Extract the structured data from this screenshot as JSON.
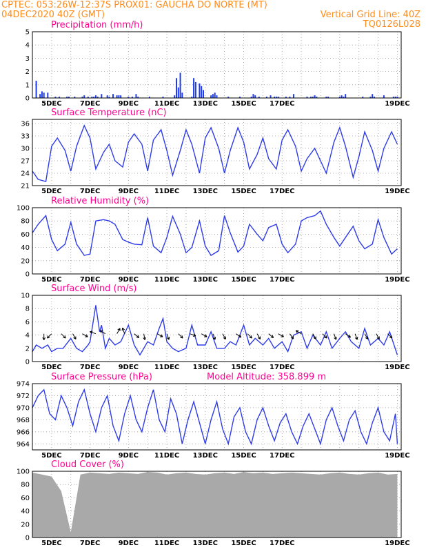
{
  "header": {
    "line1_left": "CPTEC:   053:26W-12:37S   PROX01: GAUCHA DO NORTE (MT)",
    "line2_left": "04DEC2020 40Z (GMT)",
    "line2_right": "Vertical Grid Line: 40Z",
    "line3_right": "TQ0126L028"
  },
  "colors": {
    "header": "#ff8c1a",
    "panel_title": "#ff0090",
    "series": "#2e3be8",
    "bars": "#1f3cf0",
    "cloud": "#a9a9a9",
    "wind_arrow": "#000000"
  },
  "x_axis": {
    "labels": [
      "5DEC",
      "7DEC",
      "9DEC",
      "11DEC",
      "13DEC",
      "15DEC",
      "17DEC",
      "19DEC"
    ]
  },
  "chart_data": [
    {
      "id": "precip",
      "type": "bar",
      "title": "Precipitation (mm/h)",
      "ylim": [
        0,
        5
      ],
      "yticks": [
        "0",
        "1",
        "2",
        "3",
        "4",
        "5"
      ],
      "x": [
        0.2,
        0.4,
        0.5,
        0.6,
        0.8,
        1.2,
        1.4,
        1.8,
        1.9,
        2.2,
        2.6,
        2.7,
        2.9,
        3.1,
        3.2,
        3.3,
        3.4,
        3.6,
        3.9,
        4.0,
        4.2,
        4.4,
        4.5,
        4.6,
        5.0,
        5.2,
        5.4,
        5.5,
        6.1,
        6.8,
        7.4,
        7.5,
        7.6,
        7.7,
        7.8,
        8.3,
        8.4,
        8.5,
        8.7,
        8.8,
        8.9,
        9.3,
        9.4,
        9.5,
        9.6,
        10.2,
        10.8,
        11.4,
        11.5,
        11.6,
        11.8,
        12.2,
        12.4,
        12.6,
        12.7,
        12.8,
        13.2,
        13.4,
        13.6,
        14.3,
        14.5,
        14.6,
        14.7,
        14.8,
        15.3,
        15.4,
        16.0,
        16.1,
        16.2,
        16.3,
        17.2,
        17.6,
        17.7,
        17.8,
        18.3,
        18.8,
        18.9,
        19.0
      ],
      "values": [
        1.3,
        0.3,
        0.5,
        0.4,
        0.4,
        0.1,
        0.1,
        0.1,
        0.1,
        0.1,
        0.1,
        0.2,
        0.1,
        0.1,
        0.1,
        0.2,
        0.1,
        0.3,
        0.2,
        0.1,
        0.3,
        0.2,
        0.2,
        0.2,
        0.1,
        0.1,
        0.3,
        0.1,
        0.1,
        0.1,
        0.2,
        1.5,
        0.8,
        1.9,
        0.4,
        0.1,
        1.5,
        1.2,
        1.1,
        0.9,
        0.6,
        0.2,
        0.3,
        0.4,
        0.2,
        0.1,
        0.1,
        0.1,
        0.3,
        0.2,
        0.1,
        0.1,
        0.2,
        0.1,
        0.1,
        0.1,
        0.1,
        0.1,
        0.3,
        0.1,
        0.1,
        0.1,
        0.2,
        0.1,
        0.1,
        0.1,
        0.1,
        0.2,
        0.1,
        0.3,
        0.1,
        0.1,
        0.3,
        0.1,
        0.2,
        0.1,
        0.1,
        0.1
      ]
    },
    {
      "id": "temp",
      "type": "line",
      "title": "Surface Temperature (nC)",
      "ylim": [
        21,
        37
      ],
      "yticks": [
        "21",
        "24",
        "27",
        "30",
        "33",
        "36"
      ],
      "x": [
        0,
        0.3,
        0.7,
        1.0,
        1.3,
        1.7,
        2.0,
        2.3,
        2.7,
        3.0,
        3.3,
        3.7,
        4.0,
        4.3,
        4.7,
        5.0,
        5.3,
        5.7,
        6.0,
        6.3,
        6.7,
        7.0,
        7.3,
        7.7,
        8.0,
        8.3,
        8.7,
        9.0,
        9.3,
        9.7,
        10.0,
        10.3,
        10.7,
        11.0,
        11.3,
        11.7,
        12.0,
        12.3,
        12.7,
        13.0,
        13.3,
        13.7,
        14.0,
        14.3,
        14.7,
        15.0,
        15.3,
        15.7,
        16.0,
        16.3,
        16.7,
        17.0,
        17.3,
        17.7,
        18.0,
        18.3,
        18.7,
        19.0
      ],
      "values": [
        24.5,
        22.5,
        22.0,
        30.5,
        32.5,
        29.5,
        24.5,
        30.5,
        35.5,
        32.5,
        25.0,
        29.0,
        31.0,
        27.0,
        25.5,
        31.5,
        33.5,
        31.0,
        24.5,
        32.0,
        34.5,
        29.5,
        23.5,
        29.5,
        34.5,
        31.0,
        24.0,
        32.5,
        35.0,
        30.0,
        24.0,
        29.5,
        35.0,
        31.5,
        25.0,
        28.5,
        32.5,
        27.5,
        25.0,
        32.0,
        34.5,
        30.5,
        24.5,
        27.5,
        30.0,
        27.0,
        24.0,
        31.5,
        35.0,
        30.5,
        23.0,
        28.0,
        34.0,
        29.5,
        24.5,
        30.0,
        34.0,
        31.0
      ]
    },
    {
      "id": "rh",
      "type": "line",
      "title": "Relative Humidity (%)",
      "ylim": [
        0,
        100
      ],
      "yticks": [
        "0",
        "20",
        "40",
        "60",
        "80",
        "100"
      ],
      "x": [
        0,
        0.3,
        0.7,
        1.0,
        1.3,
        1.7,
        2.0,
        2.3,
        2.7,
        3.0,
        3.3,
        3.7,
        4.0,
        4.3,
        4.7,
        5.0,
        5.3,
        5.7,
        6.0,
        6.3,
        6.7,
        7.0,
        7.3,
        7.7,
        8.0,
        8.3,
        8.7,
        9.0,
        9.3,
        9.7,
        10.0,
        10.3,
        10.7,
        11.0,
        11.3,
        11.7,
        12.0,
        12.3,
        12.7,
        13.0,
        13.3,
        13.7,
        14.0,
        14.3,
        14.7,
        15.0,
        15.3,
        15.7,
        16.0,
        16.3,
        16.7,
        17.0,
        17.3,
        17.7,
        18.0,
        18.3,
        18.7,
        19.0
      ],
      "values": [
        62,
        75,
        88,
        52,
        35,
        45,
        78,
        45,
        28,
        30,
        80,
        82,
        80,
        75,
        52,
        48,
        45,
        44,
        85,
        42,
        32,
        55,
        87,
        60,
        32,
        40,
        80,
        42,
        28,
        35,
        88,
        62,
        33,
        42,
        75,
        60,
        50,
        70,
        75,
        45,
        32,
        45,
        80,
        85,
        88,
        95,
        75,
        55,
        42,
        55,
        72,
        50,
        38,
        45,
        82,
        55,
        30,
        38
      ]
    },
    {
      "id": "wind",
      "type": "line",
      "title": "Surface Wind (m/s)",
      "ylim": [
        0,
        10
      ],
      "yticks": [
        "0",
        "2",
        "4",
        "6",
        "8",
        "10"
      ],
      "x": [
        0,
        0.2,
        0.5,
        0.8,
        1.0,
        1.3,
        1.6,
        2.0,
        2.3,
        2.6,
        2.9,
        3.0,
        3.3,
        3.5,
        3.6,
        3.8,
        4.0,
        4.3,
        4.6,
        5.0,
        5.3,
        5.6,
        6.0,
        6.3,
        6.6,
        6.8,
        7.0,
        7.3,
        7.6,
        8.0,
        8.3,
        8.6,
        9.0,
        9.3,
        9.6,
        10.0,
        10.3,
        10.6,
        11.0,
        11.3,
        11.6,
        12.0,
        12.3,
        12.6,
        13.0,
        13.3,
        13.6,
        14.0,
        14.3,
        14.6,
        15.0,
        15.3,
        15.6,
        16.0,
        16.3,
        16.6,
        17.0,
        17.3,
        17.6,
        18.0,
        18.3,
        18.6,
        19.0
      ],
      "values": [
        1.5,
        2.5,
        2.0,
        2.5,
        1.5,
        2.0,
        2.0,
        3.5,
        2.0,
        1.5,
        2.5,
        3.0,
        8.5,
        4.5,
        5.5,
        2.0,
        3.5,
        2.5,
        3.0,
        5.5,
        2.5,
        1.0,
        3.0,
        2.5,
        5.0,
        6.5,
        3.0,
        2.0,
        1.5,
        2.0,
        5.5,
        2.5,
        2.5,
        4.5,
        2.0,
        2.0,
        3.0,
        2.5,
        5.5,
        2.5,
        3.5,
        2.5,
        3.5,
        2.0,
        3.0,
        1.5,
        4.0,
        4.5,
        2.0,
        4.0,
        2.5,
        4.5,
        2.0,
        3.5,
        4.5,
        3.0,
        2.0,
        5.0,
        2.5,
        3.5,
        2.5,
        4.5,
        1.0
      ],
      "arrows_x": [
        0.6,
        1.0,
        1.5,
        2.1,
        2.6,
        3.3,
        3.8,
        4.4,
        4.8,
        5.3,
        5.8,
        6.5,
        7.0,
        7.6,
        8.2,
        8.8,
        9.4,
        9.9,
        10.6,
        11.2,
        11.7,
        12.3,
        12.8,
        13.4,
        14.0,
        14.6,
        15.1,
        15.7,
        16.3,
        16.8,
        17.3,
        17.9,
        18.5
      ],
      "arrows_dir_deg": [
        90,
        135,
        45,
        60,
        30,
        200,
        210,
        300,
        250,
        40,
        80,
        30,
        70,
        45,
        20,
        30,
        70,
        60,
        35,
        45,
        60,
        40,
        30,
        55,
        210,
        60,
        45,
        70,
        35,
        70,
        60,
        60,
        45
      ]
    },
    {
      "id": "pressure",
      "type": "line",
      "title": "Surface Pressure (hPa)",
      "ylim": [
        963,
        974
      ],
      "yticks": [
        "964",
        "966",
        "968",
        "970",
        "972",
        "974"
      ],
      "x": [
        0,
        0.3,
        0.6,
        0.9,
        1.2,
        1.5,
        1.8,
        2.1,
        2.4,
        2.7,
        3.0,
        3.3,
        3.6,
        3.9,
        4.2,
        4.5,
        4.8,
        5.1,
        5.4,
        5.7,
        6.0,
        6.3,
        6.6,
        6.9,
        7.2,
        7.5,
        7.8,
        8.1,
        8.4,
        8.7,
        9.0,
        9.3,
        9.6,
        9.9,
        10.2,
        10.5,
        10.8,
        11.1,
        11.4,
        11.7,
        12.0,
        12.3,
        12.6,
        12.9,
        13.2,
        13.5,
        13.8,
        14.1,
        14.4,
        14.7,
        15.0,
        15.3,
        15.6,
        15.9,
        16.2,
        16.5,
        16.8,
        17.1,
        17.4,
        17.7,
        18.0,
        18.3,
        18.6,
        18.9,
        19.0
      ],
      "values": [
        970.0,
        972.0,
        973.0,
        969.0,
        968.0,
        972.0,
        970.0,
        967.0,
        971.0,
        973.0,
        969.0,
        966.0,
        970.0,
        972.0,
        967.0,
        964.5,
        969.0,
        972.0,
        968.0,
        966.0,
        970.0,
        973.0,
        968.0,
        966.0,
        971.5,
        969.0,
        964.0,
        968.0,
        971.0,
        967.5,
        964.0,
        968.0,
        971.0,
        966.5,
        964.0,
        968.5,
        970.0,
        966.0,
        964.0,
        968.0,
        970.0,
        967.0,
        964.5,
        967.5,
        969.0,
        966.0,
        964.0,
        967.0,
        969.0,
        966.5,
        964.0,
        968.0,
        970.0,
        967.0,
        964.5,
        968.0,
        969.5,
        966.0,
        964.0,
        967.5,
        970.0,
        966.0,
        964.5,
        969.0,
        964.0
      ]
    },
    {
      "id": "cloud",
      "type": "bar",
      "title": "Cloud Cover (%)",
      "ylim": [
        0,
        100
      ],
      "yticks": [
        "0",
        "20",
        "40",
        "60",
        "80",
        "100"
      ],
      "x": [
        0,
        0.5,
        1.0,
        1.5,
        2.0,
        2.5,
        3.0,
        3.5,
        4.0,
        4.5,
        5.0,
        5.5,
        6.0,
        6.5,
        7.0,
        7.5,
        8.0,
        8.5,
        9.0,
        9.5,
        10.0,
        10.5,
        11.0,
        11.5,
        12.0,
        12.5,
        13.0,
        13.5,
        14.0,
        14.5,
        15.0,
        15.5,
        16.0,
        16.5,
        17.0,
        17.5,
        18.0,
        18.5,
        19.0
      ],
      "values": [
        98,
        95,
        92,
        70,
        8,
        95,
        98,
        97,
        96,
        98,
        97,
        96,
        99,
        98,
        95,
        97,
        98,
        96,
        95,
        97,
        98,
        96,
        99,
        97,
        98,
        96,
        97,
        98,
        97,
        96,
        95,
        97,
        98,
        96,
        95,
        97,
        98,
        95,
        96
      ]
    }
  ],
  "panel_extras": {
    "pressure_note": "Model Altitude: 358.899 m"
  }
}
